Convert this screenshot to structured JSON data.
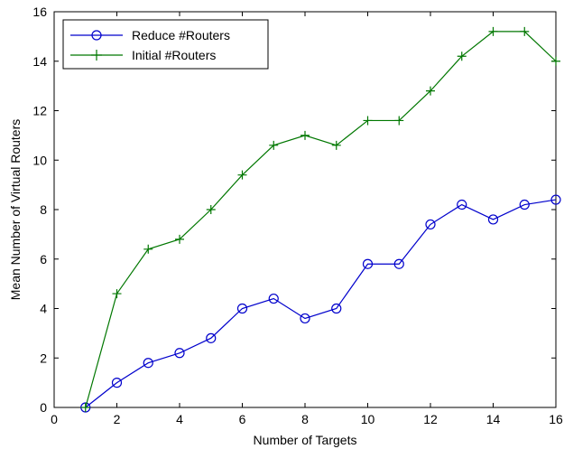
{
  "chart_data": {
    "type": "line",
    "xlabel": "Number of Targets",
    "ylabel": "Mean Number of Virtual Routers",
    "xlim": [
      0,
      16
    ],
    "ylim": [
      0,
      16
    ],
    "x_ticks": [
      0,
      2,
      4,
      6,
      8,
      10,
      12,
      14,
      16
    ],
    "y_ticks": [
      0,
      2,
      4,
      6,
      8,
      10,
      12,
      14,
      16
    ],
    "grid": false,
    "legend_position": "top-left",
    "x": [
      1,
      2,
      3,
      4,
      5,
      6,
      7,
      8,
      9,
      10,
      11,
      12,
      13,
      14,
      15,
      16
    ],
    "series": [
      {
        "name": "Reduce #Routers",
        "color": "#0000cc",
        "marker": "circle",
        "values": [
          0,
          1.0,
          1.8,
          2.2,
          2.8,
          4.0,
          4.4,
          3.6,
          4.0,
          5.8,
          5.8,
          7.4,
          8.2,
          7.6,
          8.2,
          8.4
        ]
      },
      {
        "name": "Initial #Routers",
        "color": "#007700",
        "marker": "plus",
        "values": [
          0,
          4.6,
          6.4,
          6.8,
          8.0,
          9.4,
          10.6,
          11.0,
          10.6,
          11.6,
          11.6,
          12.8,
          14.2,
          15.2,
          15.2,
          14.0
        ]
      }
    ]
  }
}
